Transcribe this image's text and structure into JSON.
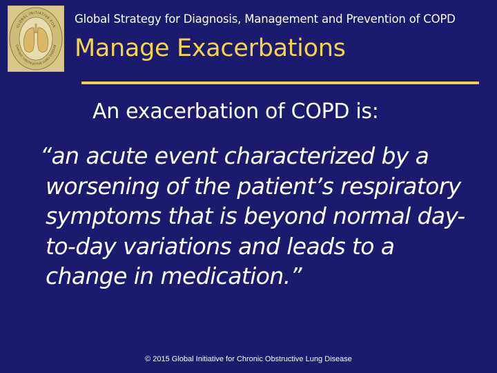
{
  "header": {
    "logo_icon": "gold-initiative-lungs-seal-icon",
    "logo_text_top": "GLOBAL INITIATIVE FOR",
    "logo_text_bottom": "CHRONIC OBSTRUCTIVE LUNG DISEASE",
    "strategy_line": "Global Strategy for Diagnosis, Management and Prevention of COPD",
    "title": "Manage Exacerbations"
  },
  "body": {
    "lead": "An exacerbation of COPD is:",
    "quote_lines": [
      "“an acute event characterized by a",
      "worsening of the patient’s respiratory",
      "symptoms that is beyond normal day-",
      "to-day variations and leads to a",
      "change in medication.”"
    ]
  },
  "footer": {
    "copyright": "© 2015 Global Initiative for Chronic Obstructive Lung Disease"
  },
  "colors": {
    "background": "#1b1a6e",
    "title": "#f5d44a",
    "rule": "#f2d03e",
    "text": "#ffffff",
    "logo_bg": "#d8c98a"
  }
}
